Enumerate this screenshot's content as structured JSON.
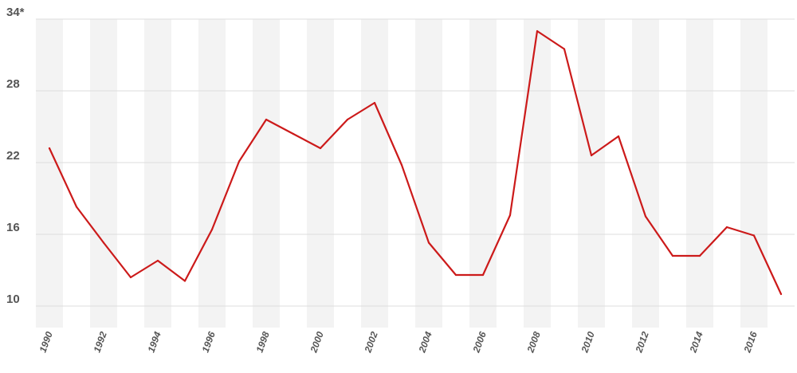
{
  "chart_data": {
    "type": "line",
    "title": "",
    "xlabel": "",
    "ylabel": "",
    "x": [
      1990,
      1991,
      1992,
      1993,
      1994,
      1995,
      1996,
      1997,
      1998,
      1999,
      2000,
      2001,
      2002,
      2003,
      2004,
      2005,
      2006,
      2007,
      2008,
      2009,
      2010,
      2011,
      2012,
      2013,
      2014,
      2015,
      2016,
      2017
    ],
    "series": [
      {
        "color": "#cc1a1a",
        "values": [
          23.2,
          18.3,
          15.3,
          12.4,
          13.8,
          12.1,
          16.4,
          22.1,
          25.6,
          24.4,
          23.2,
          25.6,
          27.0,
          21.8,
          15.3,
          12.6,
          12.6,
          17.6,
          33.0,
          31.5,
          22.6,
          24.2,
          17.5,
          14.2,
          14.2,
          16.6,
          15.9,
          11.0
        ]
      }
    ],
    "ylim": [
      8.2,
      34
    ],
    "xlim": [
      1989.5,
      2017.5
    ],
    "yticks": [
      10,
      16,
      22,
      28,
      34
    ],
    "ytick_labels": [
      "10",
      "16",
      "22",
      "28",
      "34*"
    ],
    "xticks": [
      1990,
      1992,
      1994,
      1996,
      1998,
      2000,
      2002,
      2004,
      2006,
      2008,
      2010,
      2012,
      2014,
      2016
    ],
    "xtick_labels": [
      "1990",
      "1992",
      "1994",
      "1996",
      "1998",
      "2000",
      "2002",
      "2004",
      "2006",
      "2008",
      "2010",
      "2012",
      "2014",
      "2016"
    ],
    "grid": true,
    "alternating_year_bands": true,
    "band_color": "#f3f3f3",
    "grid_color": "#dcdcdc"
  }
}
